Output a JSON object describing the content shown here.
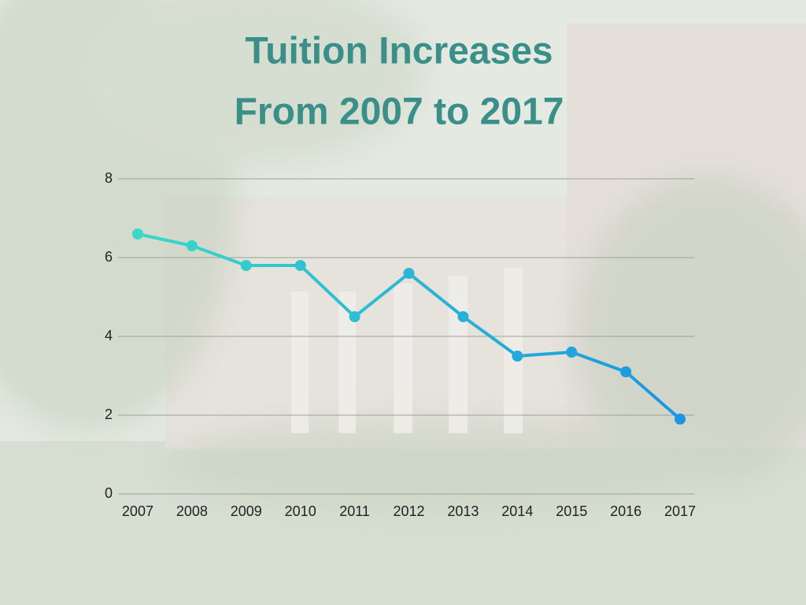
{
  "chart_data": {
    "type": "line",
    "title_lines": [
      "Tuition Increases",
      "From 2007 to 2017"
    ],
    "categories": [
      "2007",
      "2008",
      "2009",
      "2010",
      "2011",
      "2012",
      "2013",
      "2014",
      "2015",
      "2016",
      "2017"
    ],
    "series": [
      {
        "values": [
          6.6,
          6.3,
          5.8,
          5.8,
          4.5,
          5.6,
          4.5,
          3.5,
          3.6,
          3.1,
          1.9
        ],
        "color": [
          "#3bd8c6",
          "#1a96e2"
        ]
      }
    ],
    "ylim": [
      0,
      8
    ],
    "yticks": [
      0,
      2,
      4,
      6,
      8
    ],
    "grid": true
  }
}
